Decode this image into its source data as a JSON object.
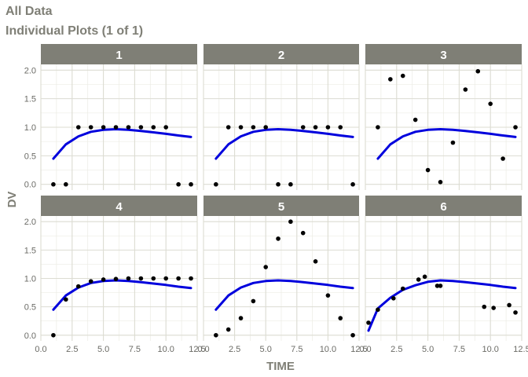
{
  "header": {
    "title": "All Data",
    "subtitle": "Individual Plots (1 of 1)"
  },
  "chart_data": {
    "type": "scatter",
    "layout": "facet-grid-2x3",
    "xlabel": "TIME",
    "ylabel": "DV",
    "xlim": [
      0,
      12.5
    ],
    "ylim": [
      -0.1,
      2.1
    ],
    "xticks": [
      0,
      2.5,
      5,
      7.5,
      10,
      12.5
    ],
    "xtick_labels": [
      "0.0",
      "2.5",
      "5.0",
      "7.5",
      "10.0",
      "12.5"
    ],
    "yticks": [
      0,
      0.5,
      1,
      1.5,
      2
    ],
    "ytick_labels": [
      "0.0",
      "0.5",
      "1.0",
      "1.5",
      "2.0"
    ],
    "grid": true,
    "colors": {
      "strip": "#7f7f76",
      "points": "#000000",
      "line": "#0000dd",
      "grid_major": "#dcdcd2",
      "grid_minor": "#ecece4"
    },
    "fitted_line": {
      "x": [
        1,
        2,
        3,
        4,
        5,
        6,
        7,
        8,
        9,
        10,
        11,
        12
      ],
      "y": [
        0.45,
        0.7,
        0.84,
        0.92,
        0.955,
        0.965,
        0.955,
        0.935,
        0.91,
        0.885,
        0.855,
        0.83
      ]
    },
    "panels": [
      {
        "label": "1",
        "points": [
          [
            1,
            0
          ],
          [
            2,
            0
          ],
          [
            3,
            1
          ],
          [
            4,
            1
          ],
          [
            5,
            1
          ],
          [
            6,
            1
          ],
          [
            7,
            1
          ],
          [
            8,
            1
          ],
          [
            9,
            1
          ],
          [
            10,
            1
          ],
          [
            11,
            0
          ],
          [
            12,
            0
          ]
        ]
      },
      {
        "label": "2",
        "points": [
          [
            1,
            0
          ],
          [
            2,
            1
          ],
          [
            3,
            1
          ],
          [
            4,
            1
          ],
          [
            5,
            1
          ],
          [
            6,
            0
          ],
          [
            7,
            0
          ],
          [
            8,
            1
          ],
          [
            9,
            1
          ],
          [
            10,
            1
          ],
          [
            11,
            1
          ],
          [
            12,
            0
          ]
        ]
      },
      {
        "label": "3",
        "points": [
          [
            1,
            1
          ],
          [
            2,
            1.84
          ],
          [
            3,
            1.9
          ],
          [
            4,
            1.13
          ],
          [
            5,
            0.25
          ],
          [
            6,
            0.04
          ],
          [
            7,
            0.73
          ],
          [
            8,
            1.66
          ],
          [
            9,
            1.98
          ],
          [
            10,
            1.41
          ],
          [
            11,
            0.45
          ],
          [
            12,
            1
          ]
        ]
      },
      {
        "label": "4",
        "points": [
          [
            1,
            0
          ],
          [
            2,
            0.63
          ],
          [
            3,
            0.86
          ],
          [
            4,
            0.95
          ],
          [
            5,
            0.98
          ],
          [
            6,
            0.99
          ],
          [
            7,
            1
          ],
          [
            8,
            1
          ],
          [
            9,
            1
          ],
          [
            10,
            1
          ],
          [
            11,
            1
          ],
          [
            12,
            1
          ]
        ]
      },
      {
        "label": "5",
        "points": [
          [
            1,
            0
          ],
          [
            2,
            0.1
          ],
          [
            3,
            0.3
          ],
          [
            4,
            0.6
          ],
          [
            5,
            1.2
          ],
          [
            6,
            1.7
          ],
          [
            7,
            2
          ],
          [
            8,
            1.8
          ],
          [
            9,
            1.3
          ],
          [
            10,
            0.7
          ],
          [
            11,
            0.3
          ],
          [
            12,
            0
          ]
        ]
      },
      {
        "label": "6",
        "points": [
          [
            0.25,
            0.22
          ],
          [
            1,
            0.45
          ],
          [
            2.25,
            0.65
          ],
          [
            3,
            0.82
          ],
          [
            4.25,
            0.98
          ],
          [
            4.75,
            1.03
          ],
          [
            5.75,
            0.87
          ],
          [
            6,
            0.87
          ],
          [
            9.5,
            0.5
          ],
          [
            10.25,
            0.48
          ],
          [
            11.5,
            0.53
          ],
          [
            12,
            0.4
          ]
        ],
        "fitted_line": {
          "x": [
            0.25,
            1,
            2,
            3,
            4,
            5,
            6,
            7,
            8,
            9,
            10,
            11,
            12
          ],
          "y": [
            0.08,
            0.47,
            0.66,
            0.8,
            0.88,
            0.94,
            0.965,
            0.955,
            0.935,
            0.91,
            0.885,
            0.855,
            0.83
          ]
        }
      }
    ]
  }
}
